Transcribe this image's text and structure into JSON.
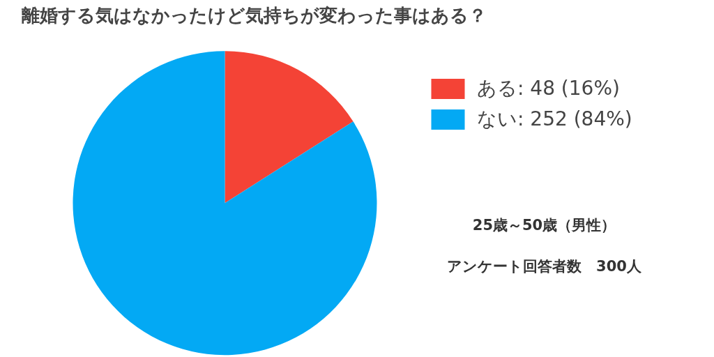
{
  "chart_data": {
    "type": "pie",
    "title": "離婚する気はなかったけど気持ちが変わった事はある？",
    "categories": [
      "ある",
      "ない"
    ],
    "values": [
      48,
      252
    ],
    "value_labels": [
      "48 (16%)",
      "252 (84%)"
    ],
    "colors": [
      "#f44336",
      "#03a9f4"
    ],
    "legend": "top right",
    "annotations": [
      "25歳～50歳（男性）",
      "アンケート回答者数　300人"
    ]
  }
}
